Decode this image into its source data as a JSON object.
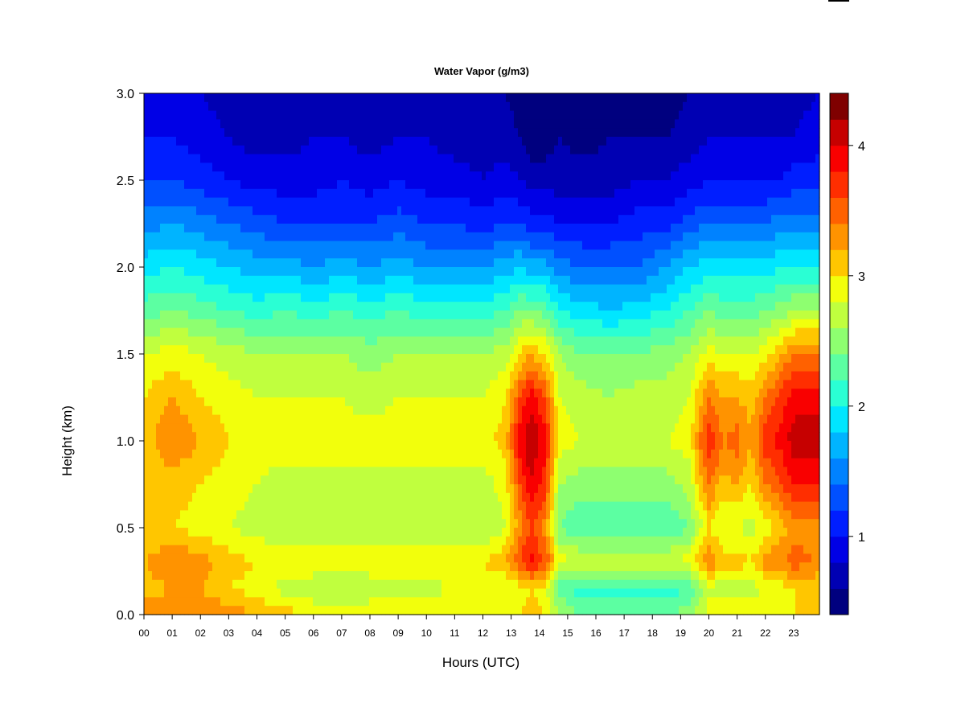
{
  "chart_data": {
    "type": "heatmap",
    "title": "Water Vapor (g/m3)",
    "xlabel": "Hours (UTC)",
    "ylabel": "Height (km)",
    "x_ticks": [
      "00",
      "01",
      "02",
      "03",
      "04",
      "05",
      "06",
      "07",
      "08",
      "09",
      "10",
      "11",
      "12",
      "13",
      "14",
      "15",
      "16",
      "17",
      "18",
      "19",
      "20",
      "21",
      "22",
      "23"
    ],
    "y_ticks": [
      "0.0",
      "0.5",
      "1.0",
      "1.5",
      "2.0",
      "2.5",
      "3.0"
    ],
    "xlim": [
      0,
      24
    ],
    "ylim": [
      0,
      3.0
    ],
    "colorbar": {
      "range": [
        0.4,
        4.4
      ],
      "ticks": [
        "1",
        "2",
        "3",
        "4"
      ],
      "levels": 20,
      "colors": [
        "#00007f",
        "#0000b3",
        "#0000e6",
        "#001eff",
        "#0050ff",
        "#0082ff",
        "#00b4ff",
        "#00e6ff",
        "#2affd4",
        "#5cffa2",
        "#8eff70",
        "#c0ff3e",
        "#f2ff0c",
        "#ffc600",
        "#ff9300",
        "#ff6100",
        "#ff2e00",
        "#f90000",
        "#c60000",
        "#7f0000"
      ]
    },
    "profile_height_km": [
      0.0,
      0.15,
      0.3,
      0.5,
      0.75,
      1.0,
      1.25,
      1.5,
      1.75,
      2.0,
      2.25,
      2.5,
      2.75,
      3.0
    ],
    "profiles": [
      {
        "hour": 0.0,
        "values": [
          3.3,
          3.1,
          3.2,
          3.0,
          3.0,
          3.1,
          3.0,
          2.8,
          2.3,
          1.9,
          1.5,
          1.2,
          1.0,
          0.9
        ]
      },
      {
        "hour": 1.0,
        "values": [
          3.4,
          3.2,
          3.4,
          3.0,
          3.1,
          3.4,
          3.2,
          2.9,
          2.4,
          2.0,
          1.6,
          1.2,
          1.0,
          0.9
        ]
      },
      {
        "hour": 2.0,
        "values": [
          3.4,
          3.2,
          3.3,
          2.9,
          3.0,
          3.2,
          3.0,
          2.8,
          2.3,
          1.9,
          1.5,
          1.1,
          0.9,
          0.8
        ]
      },
      {
        "hour": 3.0,
        "values": [
          3.3,
          3.0,
          3.1,
          2.8,
          2.9,
          3.0,
          2.9,
          2.7,
          2.2,
          1.8,
          1.4,
          1.0,
          0.8,
          0.7
        ]
      },
      {
        "hour": 4.0,
        "values": [
          3.2,
          2.9,
          3.0,
          2.7,
          2.8,
          2.9,
          2.8,
          2.6,
          2.1,
          1.7,
          1.3,
          0.9,
          0.7,
          0.6
        ]
      },
      {
        "hour": 5.0,
        "values": [
          3.1,
          2.7,
          3.0,
          2.6,
          2.7,
          2.9,
          2.8,
          2.6,
          2.2,
          1.7,
          1.2,
          0.9,
          0.7,
          0.7
        ]
      },
      {
        "hour": 6.0,
        "values": [
          3.0,
          2.6,
          3.0,
          2.6,
          2.7,
          2.9,
          2.8,
          2.6,
          2.1,
          1.6,
          1.2,
          0.9,
          0.8,
          0.7
        ]
      },
      {
        "hour": 7.0,
        "values": [
          3.0,
          2.6,
          3.0,
          2.6,
          2.7,
          2.9,
          2.8,
          2.6,
          2.2,
          1.7,
          1.2,
          1.0,
          0.8,
          0.7
        ]
      },
      {
        "hour": 8.0,
        "values": [
          3.0,
          2.6,
          3.0,
          2.6,
          2.7,
          2.9,
          2.7,
          2.5,
          2.1,
          1.6,
          1.2,
          0.9,
          0.7,
          0.6
        ]
      },
      {
        "hour": 9.0,
        "values": [
          3.0,
          2.7,
          3.0,
          2.6,
          2.7,
          2.9,
          2.8,
          2.6,
          2.2,
          1.7,
          1.3,
          1.0,
          0.8,
          0.7
        ]
      },
      {
        "hour": 10.0,
        "values": [
          3.0,
          2.7,
          3.0,
          2.6,
          2.7,
          2.9,
          2.8,
          2.6,
          2.1,
          1.6,
          1.2,
          0.9,
          0.8,
          0.7
        ]
      },
      {
        "hour": 11.0,
        "values": [
          3.0,
          2.8,
          3.0,
          2.6,
          2.7,
          2.9,
          2.8,
          2.6,
          2.1,
          1.6,
          1.2,
          0.9,
          0.7,
          0.6
        ]
      },
      {
        "hour": 12.0,
        "values": [
          3.0,
          2.8,
          3.0,
          2.6,
          2.7,
          2.9,
          2.8,
          2.6,
          2.1,
          1.6,
          1.1,
          0.8,
          0.7,
          0.6
        ]
      },
      {
        "hour": 12.8,
        "values": [
          3.0,
          2.8,
          3.2,
          2.8,
          2.9,
          3.1,
          3.0,
          2.7,
          2.2,
          1.7,
          1.2,
          0.9,
          0.7,
          0.6
        ]
      },
      {
        "hour": 13.3,
        "values": [
          3.0,
          2.9,
          3.6,
          3.3,
          3.6,
          3.9,
          3.6,
          3.0,
          2.4,
          1.8,
          1.2,
          0.8,
          0.6,
          0.5
        ]
      },
      {
        "hour": 13.7,
        "values": [
          3.1,
          3.0,
          3.9,
          3.6,
          4.0,
          4.2,
          3.9,
          3.2,
          2.4,
          1.7,
          1.1,
          0.7,
          0.5,
          0.4
        ]
      },
      {
        "hour": 14.2,
        "values": [
          3.0,
          2.9,
          3.6,
          3.3,
          3.7,
          3.9,
          3.6,
          3.0,
          2.3,
          1.7,
          1.1,
          0.7,
          0.5,
          0.4
        ]
      },
      {
        "hour": 14.7,
        "values": [
          2.6,
          2.3,
          2.9,
          2.4,
          2.6,
          2.9,
          2.8,
          2.6,
          2.0,
          1.5,
          1.0,
          0.7,
          0.6,
          0.5
        ]
      },
      {
        "hour": 15.5,
        "values": [
          2.4,
          2.1,
          2.8,
          2.2,
          2.5,
          2.8,
          2.7,
          2.4,
          1.9,
          1.4,
          1.0,
          0.7,
          0.5,
          0.4
        ]
      },
      {
        "hour": 16.5,
        "values": [
          2.4,
          2.1,
          2.8,
          2.2,
          2.5,
          2.8,
          2.6,
          2.4,
          1.8,
          1.4,
          1.0,
          0.7,
          0.6,
          0.5
        ]
      },
      {
        "hour": 17.5,
        "values": [
          2.4,
          2.1,
          2.8,
          2.2,
          2.5,
          2.8,
          2.7,
          2.4,
          1.9,
          1.4,
          1.1,
          0.8,
          0.6,
          0.5
        ]
      },
      {
        "hour": 18.5,
        "values": [
          2.4,
          2.1,
          2.8,
          2.2,
          2.5,
          2.8,
          2.7,
          2.5,
          2.0,
          1.6,
          1.1,
          0.8,
          0.6,
          0.5
        ]
      },
      {
        "hour": 19.3,
        "values": [
          2.5,
          2.2,
          2.9,
          2.4,
          2.7,
          2.9,
          2.8,
          2.6,
          2.2,
          1.8,
          1.3,
          0.9,
          0.7,
          0.6
        ]
      },
      {
        "hour": 20.0,
        "values": [
          2.9,
          2.7,
          3.4,
          3.0,
          3.4,
          3.8,
          3.4,
          2.9,
          2.4,
          1.9,
          1.4,
          1.0,
          0.8,
          0.7
        ]
      },
      {
        "hour": 20.5,
        "values": [
          2.9,
          2.7,
          3.1,
          2.8,
          3.1,
          3.4,
          3.2,
          2.8,
          2.3,
          1.9,
          1.4,
          1.0,
          0.8,
          0.7
        ]
      },
      {
        "hour": 21.0,
        "values": [
          2.9,
          2.7,
          3.1,
          2.8,
          3.2,
          3.5,
          3.2,
          2.8,
          2.3,
          1.9,
          1.4,
          1.0,
          0.8,
          0.7
        ]
      },
      {
        "hour": 21.5,
        "values": [
          2.9,
          2.7,
          3.0,
          2.7,
          3.0,
          3.2,
          3.1,
          2.8,
          2.3,
          1.9,
          1.4,
          1.0,
          0.8,
          0.7
        ]
      },
      {
        "hour": 22.0,
        "values": [
          3.0,
          2.8,
          3.3,
          2.9,
          3.4,
          3.7,
          3.4,
          2.9,
          2.4,
          1.9,
          1.4,
          1.0,
          0.8,
          0.7
        ]
      },
      {
        "hour": 22.6,
        "values": [
          3.0,
          2.9,
          3.4,
          3.1,
          3.6,
          3.9,
          3.7,
          3.2,
          2.5,
          2.0,
          1.5,
          1.0,
          0.8,
          0.7
        ]
      },
      {
        "hour": 23.0,
        "values": [
          3.0,
          3.0,
          3.5,
          3.3,
          3.8,
          4.1,
          3.9,
          3.4,
          2.6,
          2.0,
          1.5,
          1.1,
          0.8,
          0.7
        ]
      },
      {
        "hour": 23.8,
        "values": [
          3.0,
          3.0,
          3.4,
          3.3,
          3.8,
          4.1,
          3.9,
          3.4,
          2.6,
          2.0,
          1.5,
          1.1,
          0.9,
          0.8
        ]
      }
    ]
  }
}
